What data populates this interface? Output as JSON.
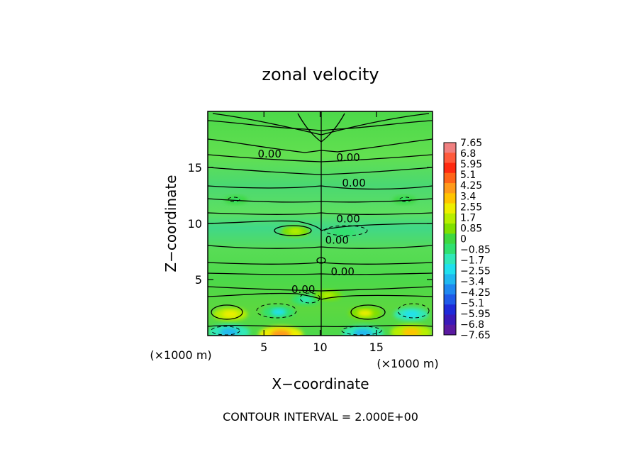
{
  "chart_data": {
    "type": "heatmap",
    "title": "zonal velocity",
    "xlabel": "X−coordinate",
    "ylabel": "Z−coordinate",
    "x_unit_label_left": "(×1000 m)",
    "x_unit_label_right": "(×1000 m)",
    "x_range": [
      0,
      20
    ],
    "y_range": [
      0,
      20
    ],
    "x_ticks": [
      {
        "value": 5,
        "label": "5"
      },
      {
        "value": 10,
        "label": "10"
      },
      {
        "value": 15,
        "label": "15"
      }
    ],
    "y_ticks": [
      {
        "value": 5,
        "label": "5"
      },
      {
        "value": 10,
        "label": "10"
      },
      {
        "value": 15,
        "label": "15"
      }
    ],
    "footer": "CONTOUR INTERVAL = 2.000E+00",
    "colorbar": {
      "min": -7.65,
      "max": 7.65,
      "labels": [
        "7.65",
        "6.8",
        "5.95",
        "5.1",
        "4.25",
        "3.4",
        "2.55",
        "1.7",
        "0.85",
        "0",
        "−0.85",
        "−1.7",
        "−2.55",
        "−3.4",
        "−4.25",
        "−5.1",
        "−5.95",
        "−6.8",
        "−7.65"
      ],
      "colors": [
        "#f08080",
        "#ff5a3c",
        "#ff2a10",
        "#ff6418",
        "#ff9a1a",
        "#ffc400",
        "#eeee00",
        "#b8ee00",
        "#80e000",
        "#3ed840",
        "#30e070",
        "#30e8b8",
        "#20e0ee",
        "#20b8f0",
        "#1f88f0",
        "#1f5ae8",
        "#1f2ad8",
        "#3a1ab8",
        "#5a1aa0"
      ]
    },
    "contour_labels": [
      {
        "x": 5.5,
        "z": 16.2,
        "text": "0.00"
      },
      {
        "x": 12.5,
        "z": 15.9,
        "text": "0.00"
      },
      {
        "x": 13.0,
        "z": 13.6,
        "text": "0.00"
      },
      {
        "x": 12.5,
        "z": 10.4,
        "text": "0.00"
      },
      {
        "x": 11.5,
        "z": 8.5,
        "text": "0.00"
      },
      {
        "x": 12.0,
        "z": 5.7,
        "text": "0.00"
      },
      {
        "x": 8.5,
        "z": 4.1,
        "text": "0.00"
      }
    ],
    "anomalies": [
      {
        "x": 2.0,
        "z": 1.9,
        "value": 2.6
      },
      {
        "x": 6.3,
        "z": 2.1,
        "value": -2.3
      },
      {
        "x": 8.7,
        "z": 3.2,
        "value": -1.4
      },
      {
        "x": 10.7,
        "z": 3.6,
        "value": 1.3
      },
      {
        "x": 14.0,
        "z": 2.0,
        "value": 2.3
      },
      {
        "x": 18.1,
        "z": 1.9,
        "value": -2.6
      },
      {
        "x": 1.9,
        "z": 0.3,
        "value": -3.8
      },
      {
        "x": 6.5,
        "z": 0.1,
        "value": 4.3
      },
      {
        "x": 13.8,
        "z": 0.2,
        "value": -3.8
      },
      {
        "x": 18.1,
        "z": 0.3,
        "value": 3.8
      },
      {
        "x": 7.8,
        "z": 9.3,
        "value": 1.6
      },
      {
        "x": 12.1,
        "z": 9.2,
        "value": -0.9
      },
      {
        "x": 2.5,
        "z": 12.1,
        "value": -0.6
      },
      {
        "x": 17.5,
        "z": 12.1,
        "value": -0.6
      }
    ]
  }
}
